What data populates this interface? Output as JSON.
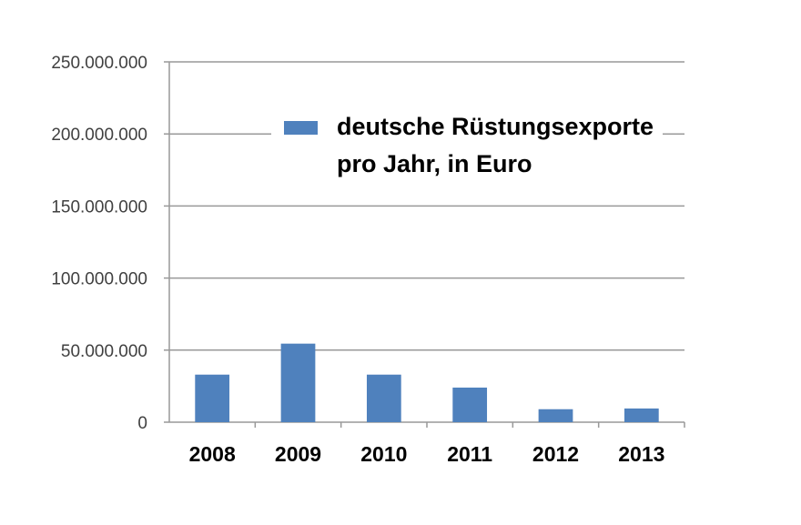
{
  "chart_data": {
    "type": "bar",
    "categories": [
      "2008",
      "2009",
      "2010",
      "2011",
      "2012",
      "2013"
    ],
    "series": [
      {
        "name": "deutsche Rüstungsexporte pro Jahr, in Euro",
        "values": [
          33000000,
          54500000,
          33000000,
          24000000,
          9000000,
          9500000
        ]
      }
    ],
    "y_tick_labels": [
      "0",
      "50.000.000",
      "100.000.000",
      "150.000.000",
      "200.000.000",
      "250.000.000"
    ],
    "ylim": [
      0,
      250000000
    ],
    "grid": true,
    "legend": {
      "position": "top-right",
      "label_lines": [
        "deutsche Rüstungsexporte",
        "pro Jahr, in Euro"
      ]
    },
    "colors": {
      "bar": "#4f81bd",
      "grid": "#999999",
      "axis": "#999999"
    }
  }
}
